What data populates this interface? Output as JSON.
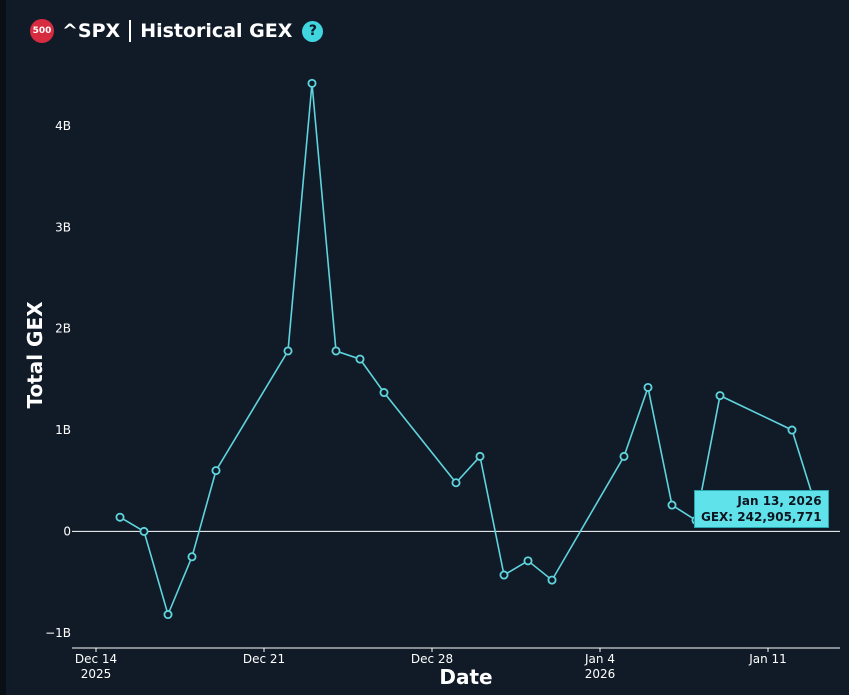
{
  "header": {
    "badge": "500",
    "symbol": "^SPX",
    "title": "Historical GEX",
    "help_glyph": "?"
  },
  "colors": {
    "background": "#111b28",
    "line": "#5fd4dc",
    "zero_line": "#ffffff",
    "badge": "#d72b3f",
    "help": "#3fd6e0"
  },
  "tooltip": {
    "date": "Jan 13, 2026",
    "value": "GEX: 242,905,771"
  },
  "chart_data": {
    "type": "line",
    "title": "^SPX | Historical GEX",
    "xlabel": "Date",
    "ylabel": "Total GEX",
    "ylim": [
      -1150000000,
      4650000000
    ],
    "xlim": [
      "2025-12-13",
      "2026-01-14"
    ],
    "yticks": [
      {
        "value": -1000000000,
        "label": "−1B"
      },
      {
        "value": 0,
        "label": "0"
      },
      {
        "value": 1000000000,
        "label": "1B"
      },
      {
        "value": 2000000000,
        "label": "2B"
      },
      {
        "value": 3000000000,
        "label": "3B"
      },
      {
        "value": 4000000000,
        "label": "4B"
      }
    ],
    "xticks": [
      {
        "date": "2025-12-14",
        "label": "Dec 14",
        "sublabel": "2025"
      },
      {
        "date": "2025-12-21",
        "label": "Dec 21",
        "sublabel": ""
      },
      {
        "date": "2025-12-28",
        "label": "Dec 28",
        "sublabel": ""
      },
      {
        "date": "2026-01-04",
        "label": "Jan 4",
        "sublabel": "2026"
      },
      {
        "date": "2026-01-11",
        "label": "Jan 11",
        "sublabel": ""
      }
    ],
    "zero_line": true,
    "grid": false,
    "series": [
      {
        "points": [
          {
            "x": "2025-12-15",
            "y": 140000000
          },
          {
            "x": "2025-12-16",
            "y": 0
          },
          {
            "x": "2025-12-17",
            "y": -820000000
          },
          {
            "x": "2025-12-18",
            "y": -250000000
          },
          {
            "x": "2025-12-19",
            "y": 600000000
          },
          {
            "x": "2025-12-22",
            "y": 1780000000
          },
          {
            "x": "2025-12-23",
            "y": 4420000000
          },
          {
            "x": "2025-12-24",
            "y": 1780000000
          },
          {
            "x": "2025-12-25",
            "y": 1700000000
          },
          {
            "x": "2025-12-26",
            "y": 1370000000
          },
          {
            "x": "2025-12-29",
            "y": 480000000
          },
          {
            "x": "2025-12-30",
            "y": 740000000
          },
          {
            "x": "2025-12-31",
            "y": -430000000
          },
          {
            "x": "2026-01-01",
            "y": -290000000
          },
          {
            "x": "2026-01-02",
            "y": -480000000
          },
          {
            "x": "2026-01-05",
            "y": 740000000
          },
          {
            "x": "2026-01-06",
            "y": 1420000000
          },
          {
            "x": "2026-01-07",
            "y": 260000000
          },
          {
            "x": "2026-01-08",
            "y": 110000000
          },
          {
            "x": "2026-01-09",
            "y": 1340000000
          },
          {
            "x": "2026-01-12",
            "y": 1000000000
          },
          {
            "x": "2026-01-13",
            "y": 242905771
          }
        ]
      }
    ]
  }
}
